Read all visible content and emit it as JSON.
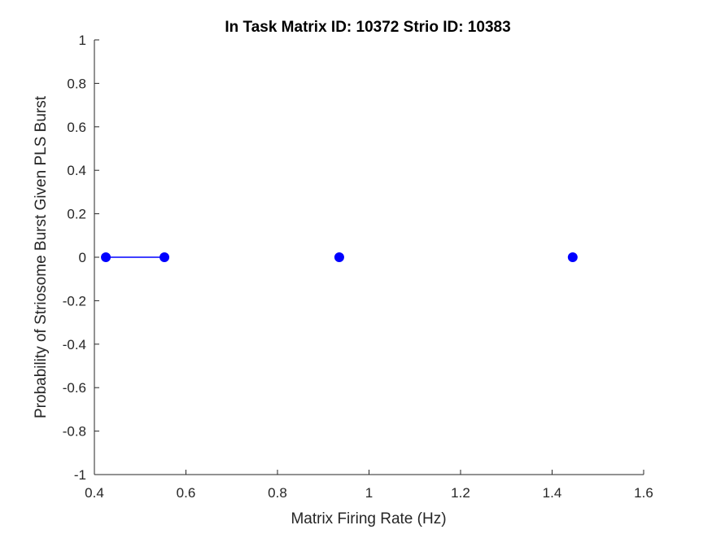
{
  "chart_data": {
    "type": "scatter",
    "title": "In Task Matrix ID: 10372 Strio ID: 10383",
    "xlabel": "Matrix Firing Rate (Hz)",
    "ylabel": "Probability of Striosome Burst Given PLS Burst",
    "xlim": [
      0.4,
      1.6
    ],
    "ylim": [
      -1,
      1
    ],
    "xticks": [
      0.4,
      0.6,
      0.8,
      1,
      1.2,
      1.4,
      1.6
    ],
    "xtick_labels": [
      "0.4",
      "0.6",
      "0.8",
      "1",
      "1.2",
      "1.4",
      "1.6"
    ],
    "yticks": [
      -1,
      -0.8,
      -0.6,
      -0.4,
      -0.2,
      0,
      0.2,
      0.4,
      0.6,
      0.8,
      1
    ],
    "ytick_labels": [
      "-1",
      "-0.8",
      "-0.6",
      "-0.4",
      "-0.2",
      "0",
      "0.2",
      "0.4",
      "0.6",
      "0.8",
      "1"
    ],
    "grid": false,
    "color": "#0000ff",
    "points": [
      {
        "x": 0.425,
        "y": 0
      },
      {
        "x": 0.553,
        "y": 0
      },
      {
        "x": 0.935,
        "y": 0
      },
      {
        "x": 1.445,
        "y": 0
      }
    ],
    "line_segments": [
      [
        {
          "x": 0.425,
          "y": 0
        },
        {
          "x": 0.553,
          "y": 0
        }
      ]
    ]
  }
}
